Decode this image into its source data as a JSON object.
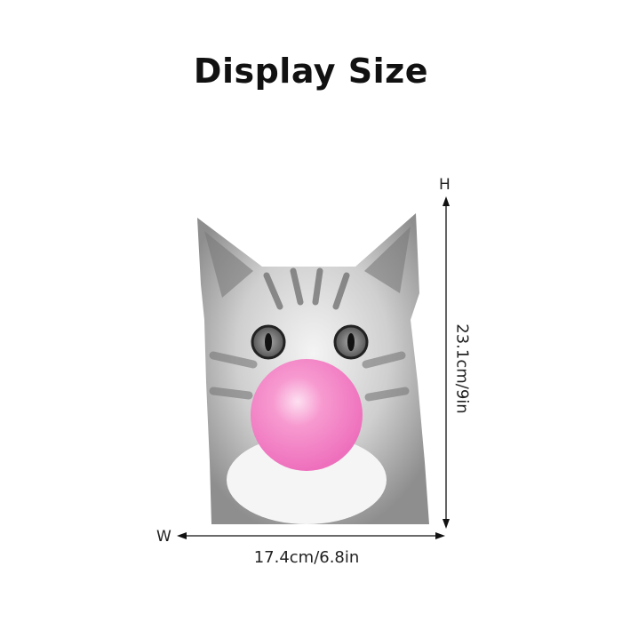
{
  "title": "Display Size",
  "dimensions": {
    "height_label": "H",
    "height_value": "23.1cm/9in",
    "width_label": "W",
    "width_value": "17.4cm/6.8in"
  },
  "product": {
    "subject": "gray tabby cat blowing pink bubble gum",
    "bubble_color": "#f47fc4"
  }
}
